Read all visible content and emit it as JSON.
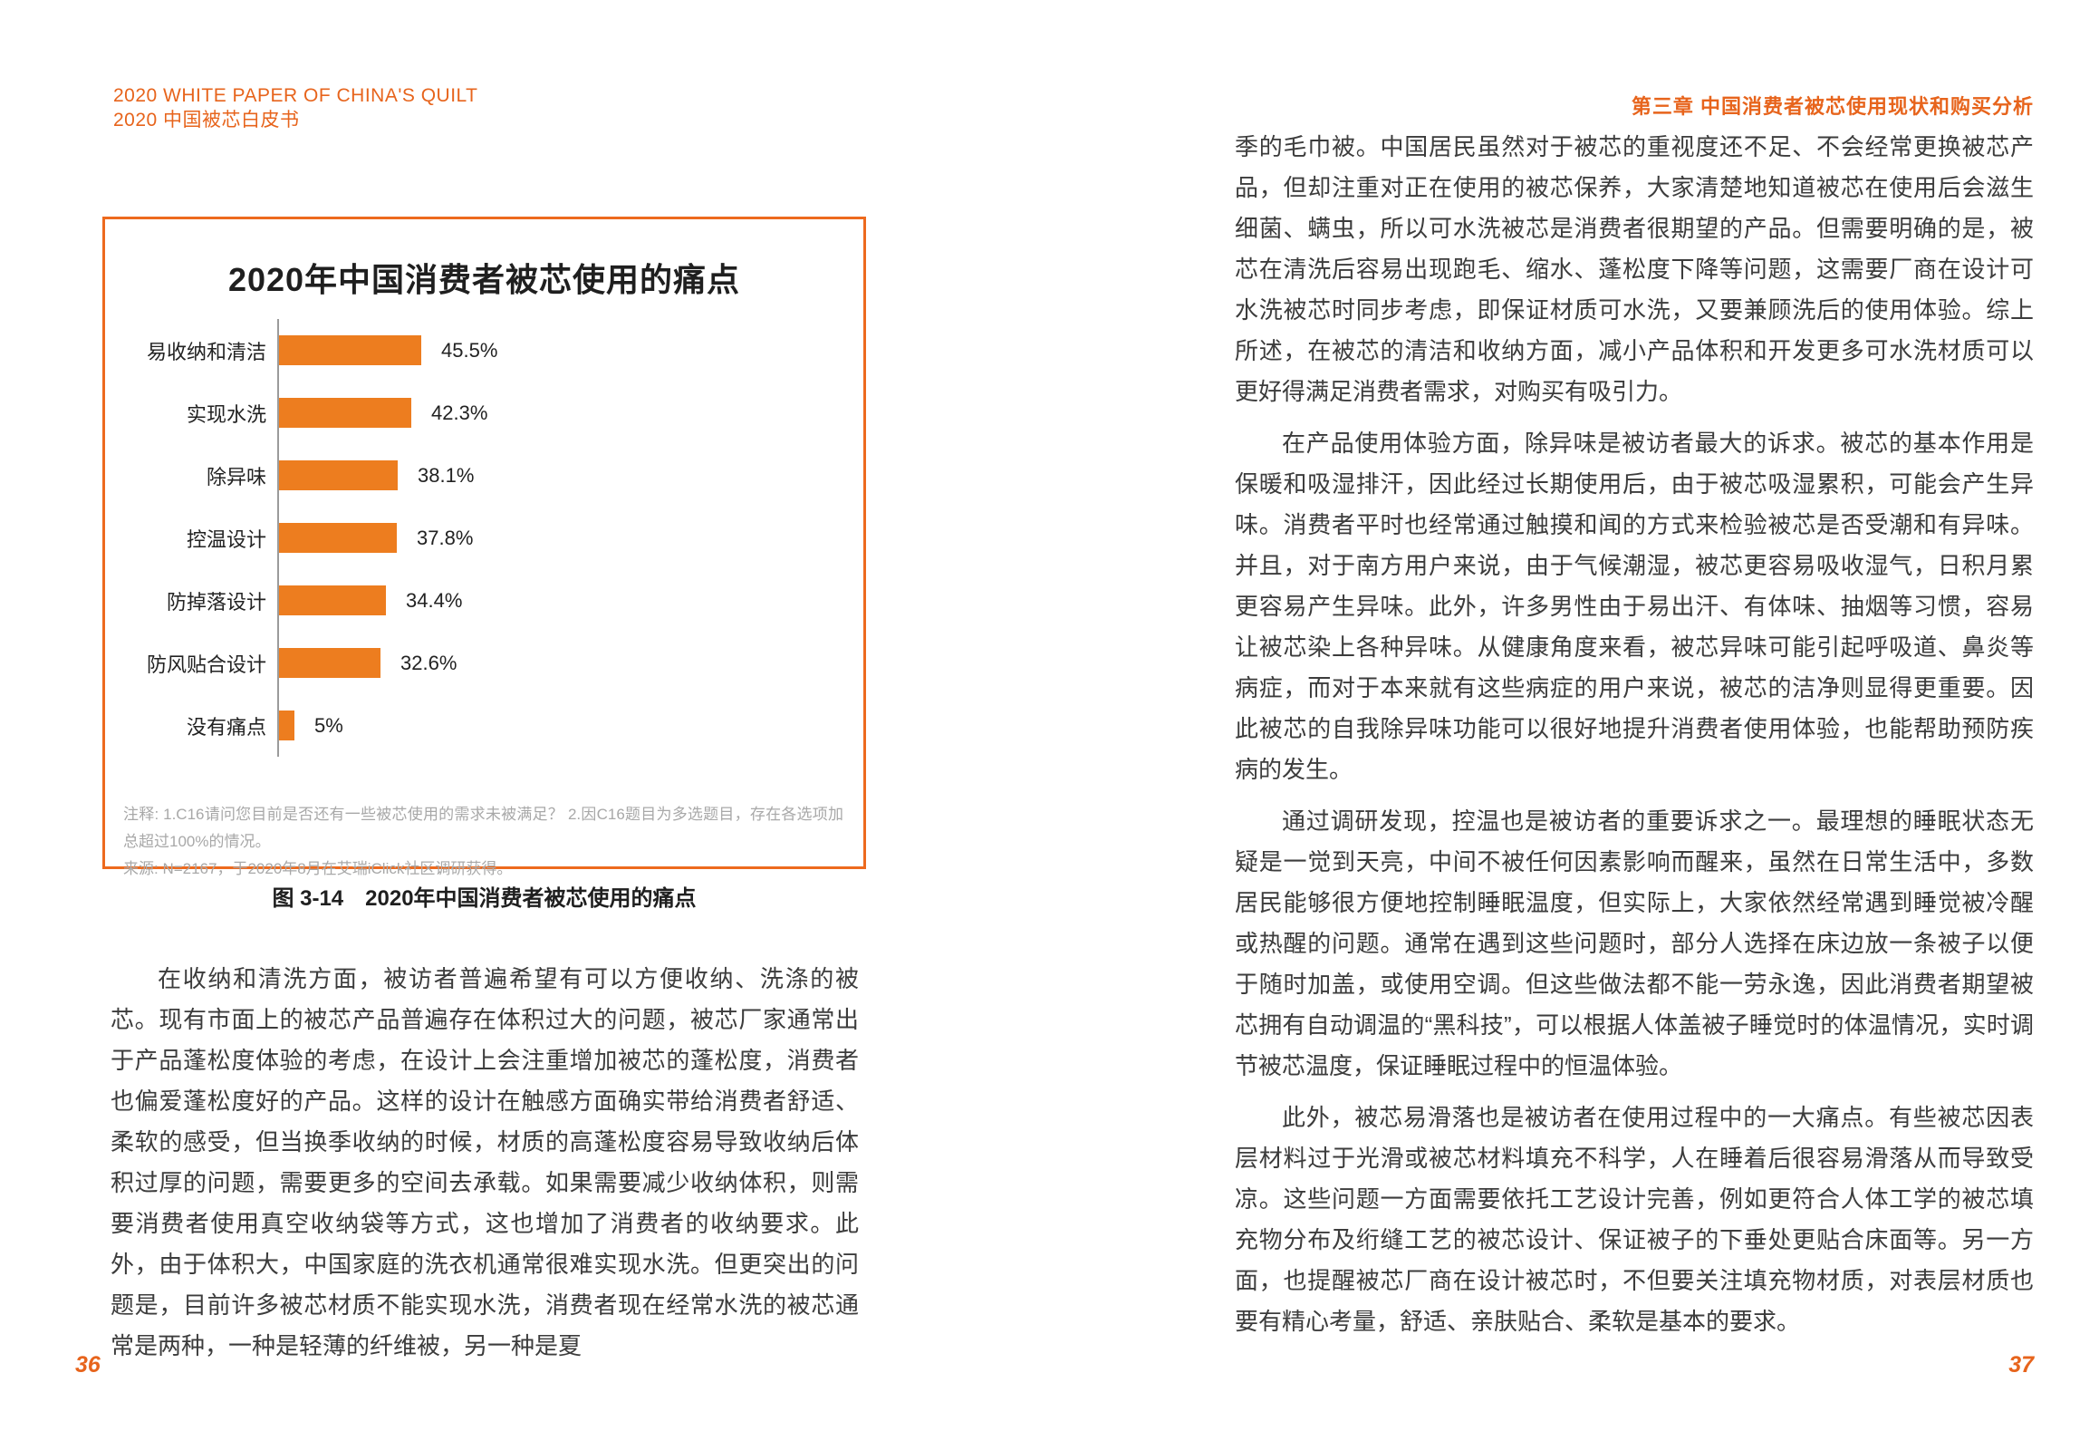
{
  "header": {
    "left_line1": "2020 WHITE PAPER OF CHINA'S QUILT",
    "left_line2": "2020 中国被芯白皮书",
    "right_chapter": "第三章 中国消费者被芯使用现状和购买分析"
  },
  "chart_data": {
    "type": "bar",
    "orientation": "horizontal",
    "title": "2020年中国消费者被芯使用的痛点",
    "categories": [
      "易收纳和清洁",
      "实现水洗",
      "除异味",
      "控温设计",
      "防掉落设计",
      "防风贴合设计",
      "没有痛点"
    ],
    "values": [
      45.5,
      42.3,
      38.1,
      37.8,
      34.4,
      32.6,
      5
    ],
    "value_labels": [
      "45.5%",
      "42.3%",
      "38.1%",
      "37.8%",
      "34.4%",
      "32.6%",
      "5%"
    ],
    "xlim": [
      0,
      50
    ],
    "grid": false,
    "legend_position": "none",
    "bar_color": "#ED7D1F",
    "note_line1": "注释: 1.C16请问您目前是否还有一些被芯使用的需求未被满足？ 2.因C16题目为多选题目，存在各选项加总超过100%的情况。",
    "note_line2": "来源: N=2167，于2020年8月在艾瑞iClick社区调研获得。"
  },
  "figure_caption": "图 3-14　2020年中国消费者被芯使用的痛点",
  "left_page": {
    "page_number": "36",
    "body": "在收纳和清洗方面，被访者普遍希望有可以方便收纳、洗涤的被芯。现有市面上的被芯产品普遍存在体积过大的问题，被芯厂家通常出于产品蓬松度体验的考虑，在设计上会注重增加被芯的蓬松度，消费者也偏爱蓬松度好的产品。这样的设计在触感方面确实带给消费者舒适、柔软的感受，但当换季收纳的时候，材质的高蓬松度容易导致收纳后体积过厚的问题，需要更多的空间去承载。如果需要减少收纳体积，则需要消费者使用真空收纳袋等方式，这也增加了消费者的收纳要求。此外，由于体积大，中国家庭的洗衣机通常很难实现水洗。但更突出的问题是，目前许多被芯材质不能实现水洗，消费者现在经常水洗的被芯通常是两种，一种是轻薄的纤维被，另一种是夏"
  },
  "right_page": {
    "page_number": "37",
    "paragraphs": [
      "季的毛巾被。中国居民虽然对于被芯的重视度还不足、不会经常更换被芯产品，但却注重对正在使用的被芯保养，大家清楚地知道被芯在使用后会滋生细菌、螨虫，所以可水洗被芯是消费者很期望的产品。但需要明确的是，被芯在清洗后容易出现跑毛、缩水、蓬松度下降等问题，这需要厂商在设计可水洗被芯时同步考虑，即保证材质可水洗，又要兼顾洗后的使用体验。综上所述，在被芯的清洁和收纳方面，减小产品体积和开发更多可水洗材质可以更好得满足消费者需求，对购买有吸引力。",
      "在产品使用体验方面，除异味是被访者最大的诉求。被芯的基本作用是保暖和吸湿排汗，因此经过长期使用后，由于被芯吸湿累积，可能会产生异味。消费者平时也经常通过触摸和闻的方式来检验被芯是否受潮和有异味。并且，对于南方用户来说，由于气候潮湿，被芯更容易吸收湿气，日积月累更容易产生异味。此外，许多男性由于易出汗、有体味、抽烟等习惯，容易让被芯染上各种异味。从健康角度来看，被芯异味可能引起呼吸道、鼻炎等病症，而对于本来就有这些病症的用户来说，被芯的洁净则显得更重要。因此被芯的自我除异味功能可以很好地提升消费者使用体验，也能帮助预防疾病的发生。",
      "通过调研发现，控温也是被访者的重要诉求之一。最理想的睡眠状态无疑是一觉到天亮，中间不被任何因素影响而醒来，虽然在日常生活中，多数居民能够很方便地控制睡眠温度，但实际上，大家依然经常遇到睡觉被冷醒或热醒的问题。通常在遇到这些问题时，部分人选择在床边放一条被子以便于随时加盖，或使用空调。但这些做法都不能一劳永逸，因此消费者期望被芯拥有自动调温的“黑科技”，可以根据人体盖被子睡觉时的体温情况，实时调节被芯温度，保证睡眠过程中的恒温体验。",
      "此外，被芯易滑落也是被访者在使用过程中的一大痛点。有些被芯因表层材料过于光滑或被芯材料填充不科学，人在睡着后很容易滑落从而导致受凉。这些问题一方面需要依托工艺设计完善，例如更符合人体工学的被芯填充物分布及绗缝工艺的被芯设计、保证被子的下垂处更贴合床面等。另一方面，也提醒被芯厂商在设计被芯时，不但要关注填充物材质，对表层材质也要有精心考量，舒适、亲肤贴合、柔软是基本的要求。"
    ]
  },
  "colors": {
    "accent_orange": "#E7641C",
    "bar_orange": "#ED7D1F",
    "note_gray": "#A8A8A8",
    "axis_gray": "#9B9B9B"
  }
}
